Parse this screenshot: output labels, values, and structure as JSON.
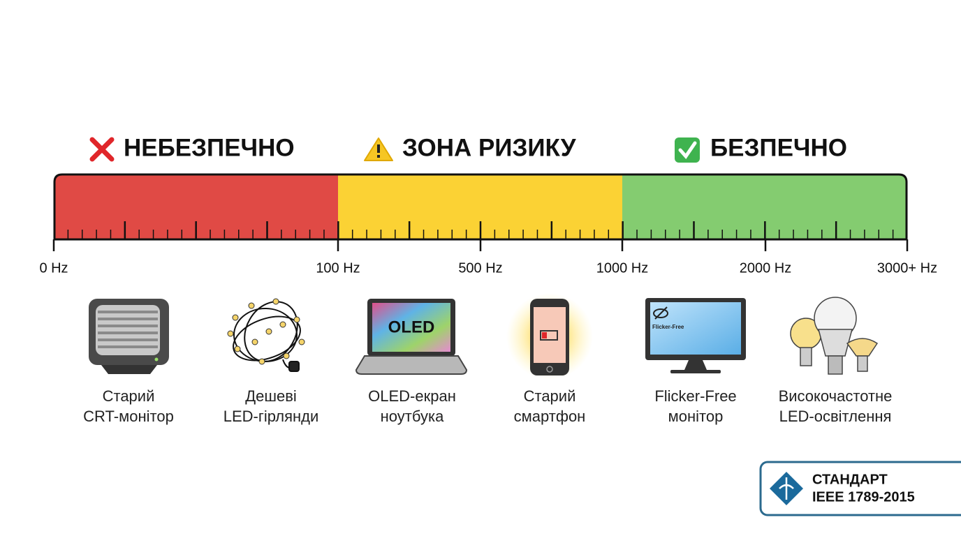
{
  "zones": [
    {
      "title": "НЕБЕЗПЕЧНО"
    },
    {
      "title": "ЗОНА РИЗИКУ"
    },
    {
      "title": "БЕЗПЕЧНО"
    }
  ],
  "scale": [
    "0 Hz",
    "100 Hz",
    "500 Hz",
    "1000 Hz",
    "2000 Hz",
    "3000+ Hz"
  ],
  "devices": [
    {
      "label": [
        "Старий",
        "CRT-монітор"
      ]
    },
    {
      "label": [
        "Дешеві",
        "LED-гірлянди"
      ]
    },
    {
      "label": [
        "OLED-екран",
        "ноутбука"
      ],
      "screen_text": "OLED"
    },
    {
      "label": [
        "Старий",
        "смартфон"
      ]
    },
    {
      "label": [
        "Flicker-Free",
        "монітор"
      ],
      "screen_text": "Flicker-Free"
    },
    {
      "label": [
        "Високочастотне",
        "LED-освітлення"
      ]
    }
  ],
  "badge": {
    "line1": "СТАНДАРТ",
    "line2": "IEEE 1789-2015"
  }
}
